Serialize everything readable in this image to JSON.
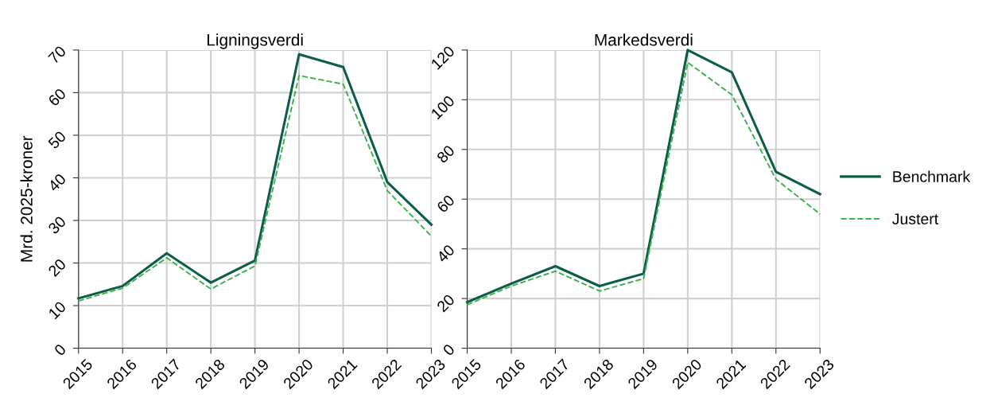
{
  "chart_data": [
    {
      "type": "line",
      "title": "Ligningsverdi",
      "ylabel": "Mrd. 2025-kroner",
      "x": [
        2015,
        2016,
        2017,
        2018,
        2019,
        2020,
        2021,
        2022,
        2023
      ],
      "xlim": [
        2015,
        2023
      ],
      "xticks": [
        2015,
        2016,
        2017,
        2018,
        2019,
        2020,
        2021,
        2022,
        2023
      ],
      "ylim": [
        0,
        70
      ],
      "yticks": [
        0,
        10,
        20,
        30,
        40,
        50,
        60,
        70
      ],
      "grid": true,
      "legend": false,
      "series": [
        {
          "color": "#0b5e45",
          "line_style": "solid",
          "values": [
            11.7,
            14.6,
            22.3,
            15.4,
            20.6,
            69,
            66,
            39,
            29
          ]
        },
        {
          "color": "#3cb44b",
          "line_style": "dashed",
          "values": [
            11.1,
            14.1,
            21.2,
            13.9,
            19.3,
            64,
            62,
            37,
            26.3
          ]
        }
      ]
    },
    {
      "type": "line",
      "title": "Markedsverdi",
      "x": [
        2015,
        2016,
        2017,
        2018,
        2019,
        2020,
        2021,
        2022,
        2023
      ],
      "xlim": [
        2015,
        2023
      ],
      "xticks": [
        2015,
        2016,
        2017,
        2018,
        2019,
        2020,
        2021,
        2022,
        2023
      ],
      "ylim": [
        0,
        120
      ],
      "yticks": [
        0,
        20,
        40,
        60,
        80,
        100,
        120
      ],
      "grid": true,
      "legend": "right",
      "series": [
        {
          "name": "Benchmark",
          "color": "#0b5e45",
          "line_style": "solid",
          "values": [
            18.5,
            26,
            33,
            25,
            30,
            120,
            111,
            71,
            62
          ]
        },
        {
          "name": "Justert",
          "color": "#3cb44b",
          "line_style": "dashed",
          "values": [
            17.5,
            25,
            31,
            23,
            28,
            115,
            102,
            68,
            54
          ]
        }
      ]
    }
  ]
}
